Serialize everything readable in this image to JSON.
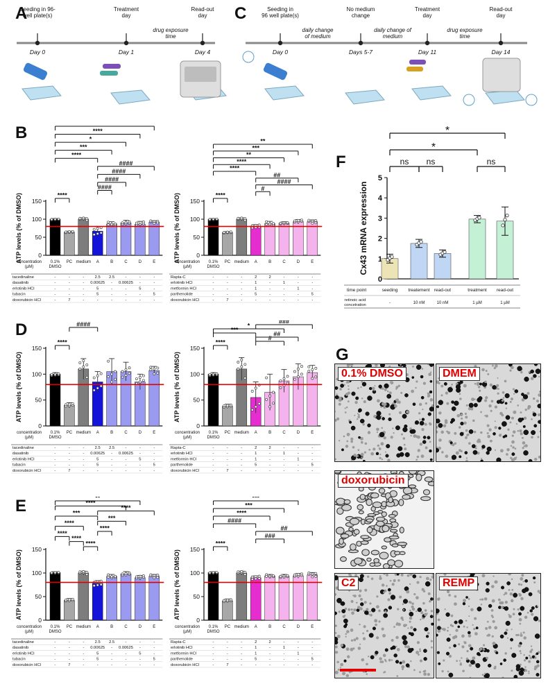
{
  "panel_letters": {
    "a": "A",
    "b": "B",
    "c": "C",
    "d": "D",
    "e": "E",
    "f": "F",
    "g": "G"
  },
  "timeline_a": {
    "steps": [
      {
        "day": "Day 0",
        "label": "Seeding in 96-\nwell plate(s)"
      },
      {
        "day": "Day 1",
        "label": "Treatment\nday"
      },
      {
        "day": "Day 4",
        "label": "Read-out\nday"
      }
    ],
    "interval": "drug exposure\ntime"
  },
  "timeline_c": {
    "steps": [
      {
        "day": "Day 0",
        "label": "Seeding in\n96 well plate(s)"
      },
      {
        "day": "Days 5-7",
        "label": "No medium\nchange"
      },
      {
        "day": "Day 11",
        "label": "Treatment\nday"
      },
      {
        "day": "Day 14",
        "label": "Read-out\nday"
      }
    ],
    "intervals": [
      "daily change\nof medium",
      "daily change of\nmedium",
      "drug exposure\ntime"
    ]
  },
  "ylabel_atp": "ATP levels (% of DMSO)",
  "conc_label": "concentration\n(µM)",
  "conc_values": [
    "0.1%\nDMSO",
    "PC",
    "medium",
    "A",
    "B",
    "C",
    "D",
    "E"
  ],
  "table_left": {
    "rows": [
      {
        "name": "tacedinaline",
        "vals": [
          "-",
          "-",
          "-",
          "2.5",
          "2.5",
          "-",
          "-",
          "-"
        ]
      },
      {
        "name": "dasatinib",
        "vals": [
          "-",
          "-",
          "-",
          "0.00625",
          "-",
          "0.00625",
          "-",
          "-"
        ]
      },
      {
        "name": "erlotinib HCl",
        "vals": [
          "-",
          "-",
          "-",
          "5",
          "-",
          "-",
          "5",
          "-"
        ]
      },
      {
        "name": "tubacin",
        "vals": [
          "-",
          "-",
          "-",
          "5",
          "-",
          "-",
          "-",
          "5"
        ]
      },
      {
        "name": "doxorubicin HCl",
        "vals": [
          "-",
          "7",
          "-",
          "-",
          "-",
          "-",
          "-",
          "-"
        ]
      }
    ]
  },
  "table_right": {
    "rows": [
      {
        "name": "Rapta-C",
        "vals": [
          "-",
          "-",
          "-",
          "2",
          "2",
          "-",
          "-",
          "-"
        ]
      },
      {
        "name": "erlotinib HCl",
        "vals": [
          "-",
          "-",
          "-",
          "1",
          "-",
          "1",
          "-",
          "-"
        ]
      },
      {
        "name": "metformin HCl",
        "vals": [
          "-",
          "-",
          "-",
          "1",
          "-",
          "-",
          "1",
          "-"
        ]
      },
      {
        "name": "parthenolide",
        "vals": [
          "-",
          "-",
          "-",
          "5",
          "-",
          "-",
          "-",
          "5"
        ]
      },
      {
        "name": "doxorubicin HCl",
        "vals": [
          "-",
          "7",
          "-",
          "-",
          "-",
          "-",
          "-",
          "-"
        ]
      }
    ]
  },
  "chart_data": [
    {
      "id": "B-left",
      "type": "bar",
      "categories": [
        "0.1%\nDMSO",
        "PC",
        "medium",
        "A",
        "B",
        "C",
        "D",
        "E"
      ],
      "values": [
        100,
        64,
        100,
        67,
        87,
        90,
        86,
        92
      ],
      "errors": [
        2,
        3,
        4,
        12,
        6,
        7,
        8,
        4
      ],
      "ylim": [
        0,
        150
      ],
      "yticks": [
        0,
        50,
        100,
        150
      ],
      "ref_line": 80,
      "brackets": [
        [
          0,
          7,
          "*"
        ],
        [
          0,
          6,
          "****"
        ],
        [
          0,
          5,
          "*"
        ],
        [
          0,
          4,
          "***"
        ],
        [
          0,
          3,
          "****"
        ],
        [
          3,
          7,
          "####"
        ],
        [
          3,
          6,
          "####"
        ],
        [
          3,
          5,
          "####"
        ],
        [
          3,
          4,
          "####"
        ],
        [
          0,
          1,
          "****"
        ]
      ]
    },
    {
      "id": "B-right",
      "type": "bar",
      "categories": [
        "0.1%\nDMSO",
        "PC",
        "medium",
        "A",
        "B",
        "C",
        "D",
        "E"
      ],
      "values": [
        100,
        63,
        100,
        80,
        88,
        89,
        93,
        93
      ],
      "errors": [
        2,
        3,
        4,
        5,
        6,
        4,
        6,
        5
      ],
      "ylim": [
        0,
        150
      ],
      "yticks": [
        0,
        50,
        100,
        150
      ],
      "ref_line": 80,
      "brackets": [
        [
          0,
          7,
          "**"
        ],
        [
          0,
          6,
          "***"
        ],
        [
          0,
          5,
          "**"
        ],
        [
          0,
          4,
          "****"
        ],
        [
          0,
          3,
          "****"
        ],
        [
          3,
          6,
          "##"
        ],
        [
          3,
          7,
          "####"
        ],
        [
          3,
          4,
          "#"
        ],
        [
          0,
          1,
          "****"
        ],
        [
          3,
          3,
          ""
        ]
      ]
    },
    {
      "id": "D-left",
      "type": "bar",
      "categories": [
        "0.1%\nDMSO",
        "PC",
        "medium",
        "A",
        "B",
        "C",
        "D",
        "E"
      ],
      "values": [
        100,
        40,
        110,
        85,
        105,
        105,
        85,
        107
      ],
      "errors": [
        3,
        5,
        20,
        20,
        25,
        18,
        15,
        8
      ],
      "ylim": [
        0,
        150
      ],
      "yticks": [
        0,
        50,
        100,
        150
      ],
      "ref_line": 80,
      "brackets": [
        [
          1,
          3,
          "####"
        ],
        [
          0,
          1,
          "****"
        ]
      ]
    },
    {
      "id": "D-right",
      "type": "bar",
      "categories": [
        "0.1%\nDMSO",
        "PC",
        "medium",
        "A",
        "B",
        "C",
        "D",
        "E"
      ],
      "values": [
        100,
        38,
        110,
        55,
        65,
        87,
        95,
        103
      ],
      "errors": [
        3,
        4,
        22,
        30,
        35,
        22,
        25,
        14
      ],
      "ylim": [
        0,
        150
      ],
      "yticks": [
        0,
        50,
        100,
        150
      ],
      "ref_line": 80,
      "brackets": [
        [
          3,
          7,
          "###"
        ],
        [
          0,
          5,
          "*"
        ],
        [
          0,
          3,
          "***"
        ],
        [
          3,
          6,
          "##"
        ],
        [
          3,
          5,
          "#"
        ],
        [
          0,
          1,
          "****"
        ]
      ]
    },
    {
      "id": "E-left",
      "type": "bar",
      "categories": [
        "0.1%\nDMSO",
        "PC",
        "medium",
        "A",
        "B",
        "C",
        "D",
        "E"
      ],
      "values": [
        101,
        42,
        100,
        78,
        93,
        98,
        90,
        93
      ],
      "errors": [
        2,
        4,
        4,
        6,
        4,
        5,
        5,
        4
      ],
      "ylim": [
        0,
        150
      ],
      "yticks": [
        0,
        50,
        100,
        150
      ],
      "ref_line": 80,
      "brackets": [
        [
          0,
          6,
          "**"
        ],
        [
          0,
          5,
          "****"
        ],
        [
          3,
          7,
          "****"
        ],
        [
          0,
          3,
          "***"
        ],
        [
          3,
          5,
          "***"
        ],
        [
          0,
          2,
          "****"
        ],
        [
          3,
          4,
          "****"
        ],
        [
          0,
          1,
          "****"
        ],
        [
          1,
          2,
          "****"
        ],
        [
          2,
          3,
          "****"
        ]
      ]
    },
    {
      "id": "E-right",
      "type": "bar",
      "categories": [
        "0.1%\nDMSO",
        "PC",
        "medium",
        "A",
        "B",
        "C",
        "D",
        "E"
      ],
      "values": [
        101,
        41,
        100,
        90,
        94,
        93,
        94,
        96
      ],
      "errors": [
        2,
        4,
        4,
        4,
        3,
        4,
        5,
        5
      ],
      "ylim": [
        0,
        150
      ],
      "yticks": [
        0,
        50,
        100,
        150
      ],
      "ref_line": 80,
      "brackets": [
        [
          0,
          6,
          "***"
        ],
        [
          0,
          5,
          "***"
        ],
        [
          0,
          4,
          "****"
        ],
        [
          0,
          3,
          "####"
        ],
        [
          3,
          7,
          "##"
        ],
        [
          3,
          5,
          "###"
        ],
        [
          0,
          1,
          "****"
        ]
      ]
    },
    {
      "id": "F",
      "type": "bar",
      "categories": [
        "seeding",
        "treatement",
        "read-out",
        "treatment",
        "read-out"
      ],
      "values": [
        1.0,
        1.75,
        1.25,
        2.95,
        2.85
      ],
      "errors": [
        0.22,
        0.2,
        0.18,
        0.18,
        0.7
      ],
      "ylim": [
        0,
        5
      ],
      "yticks": [
        0,
        1,
        2,
        3,
        4,
        5
      ],
      "ylabel": "Cx43 mRNA expression",
      "row_time_label": "time point",
      "row_ra_label": "retinoic acid\nconcetration",
      "ra_values": [
        "-",
        "10 nM",
        "10 nM",
        "1 µM",
        "1 µM"
      ],
      "brackets": [
        [
          0,
          1,
          "ns"
        ],
        [
          1,
          2,
          "ns"
        ],
        [
          3,
          4,
          "ns"
        ],
        [
          0,
          3,
          "*"
        ],
        [
          0,
          4,
          "*"
        ]
      ]
    }
  ],
  "microscopy": [
    {
      "label": "0.1% DMSO"
    },
    {
      "label": "DMEM"
    },
    {
      "label": "doxorubicin"
    },
    {
      "label": "C2"
    },
    {
      "label": "REMP"
    }
  ]
}
